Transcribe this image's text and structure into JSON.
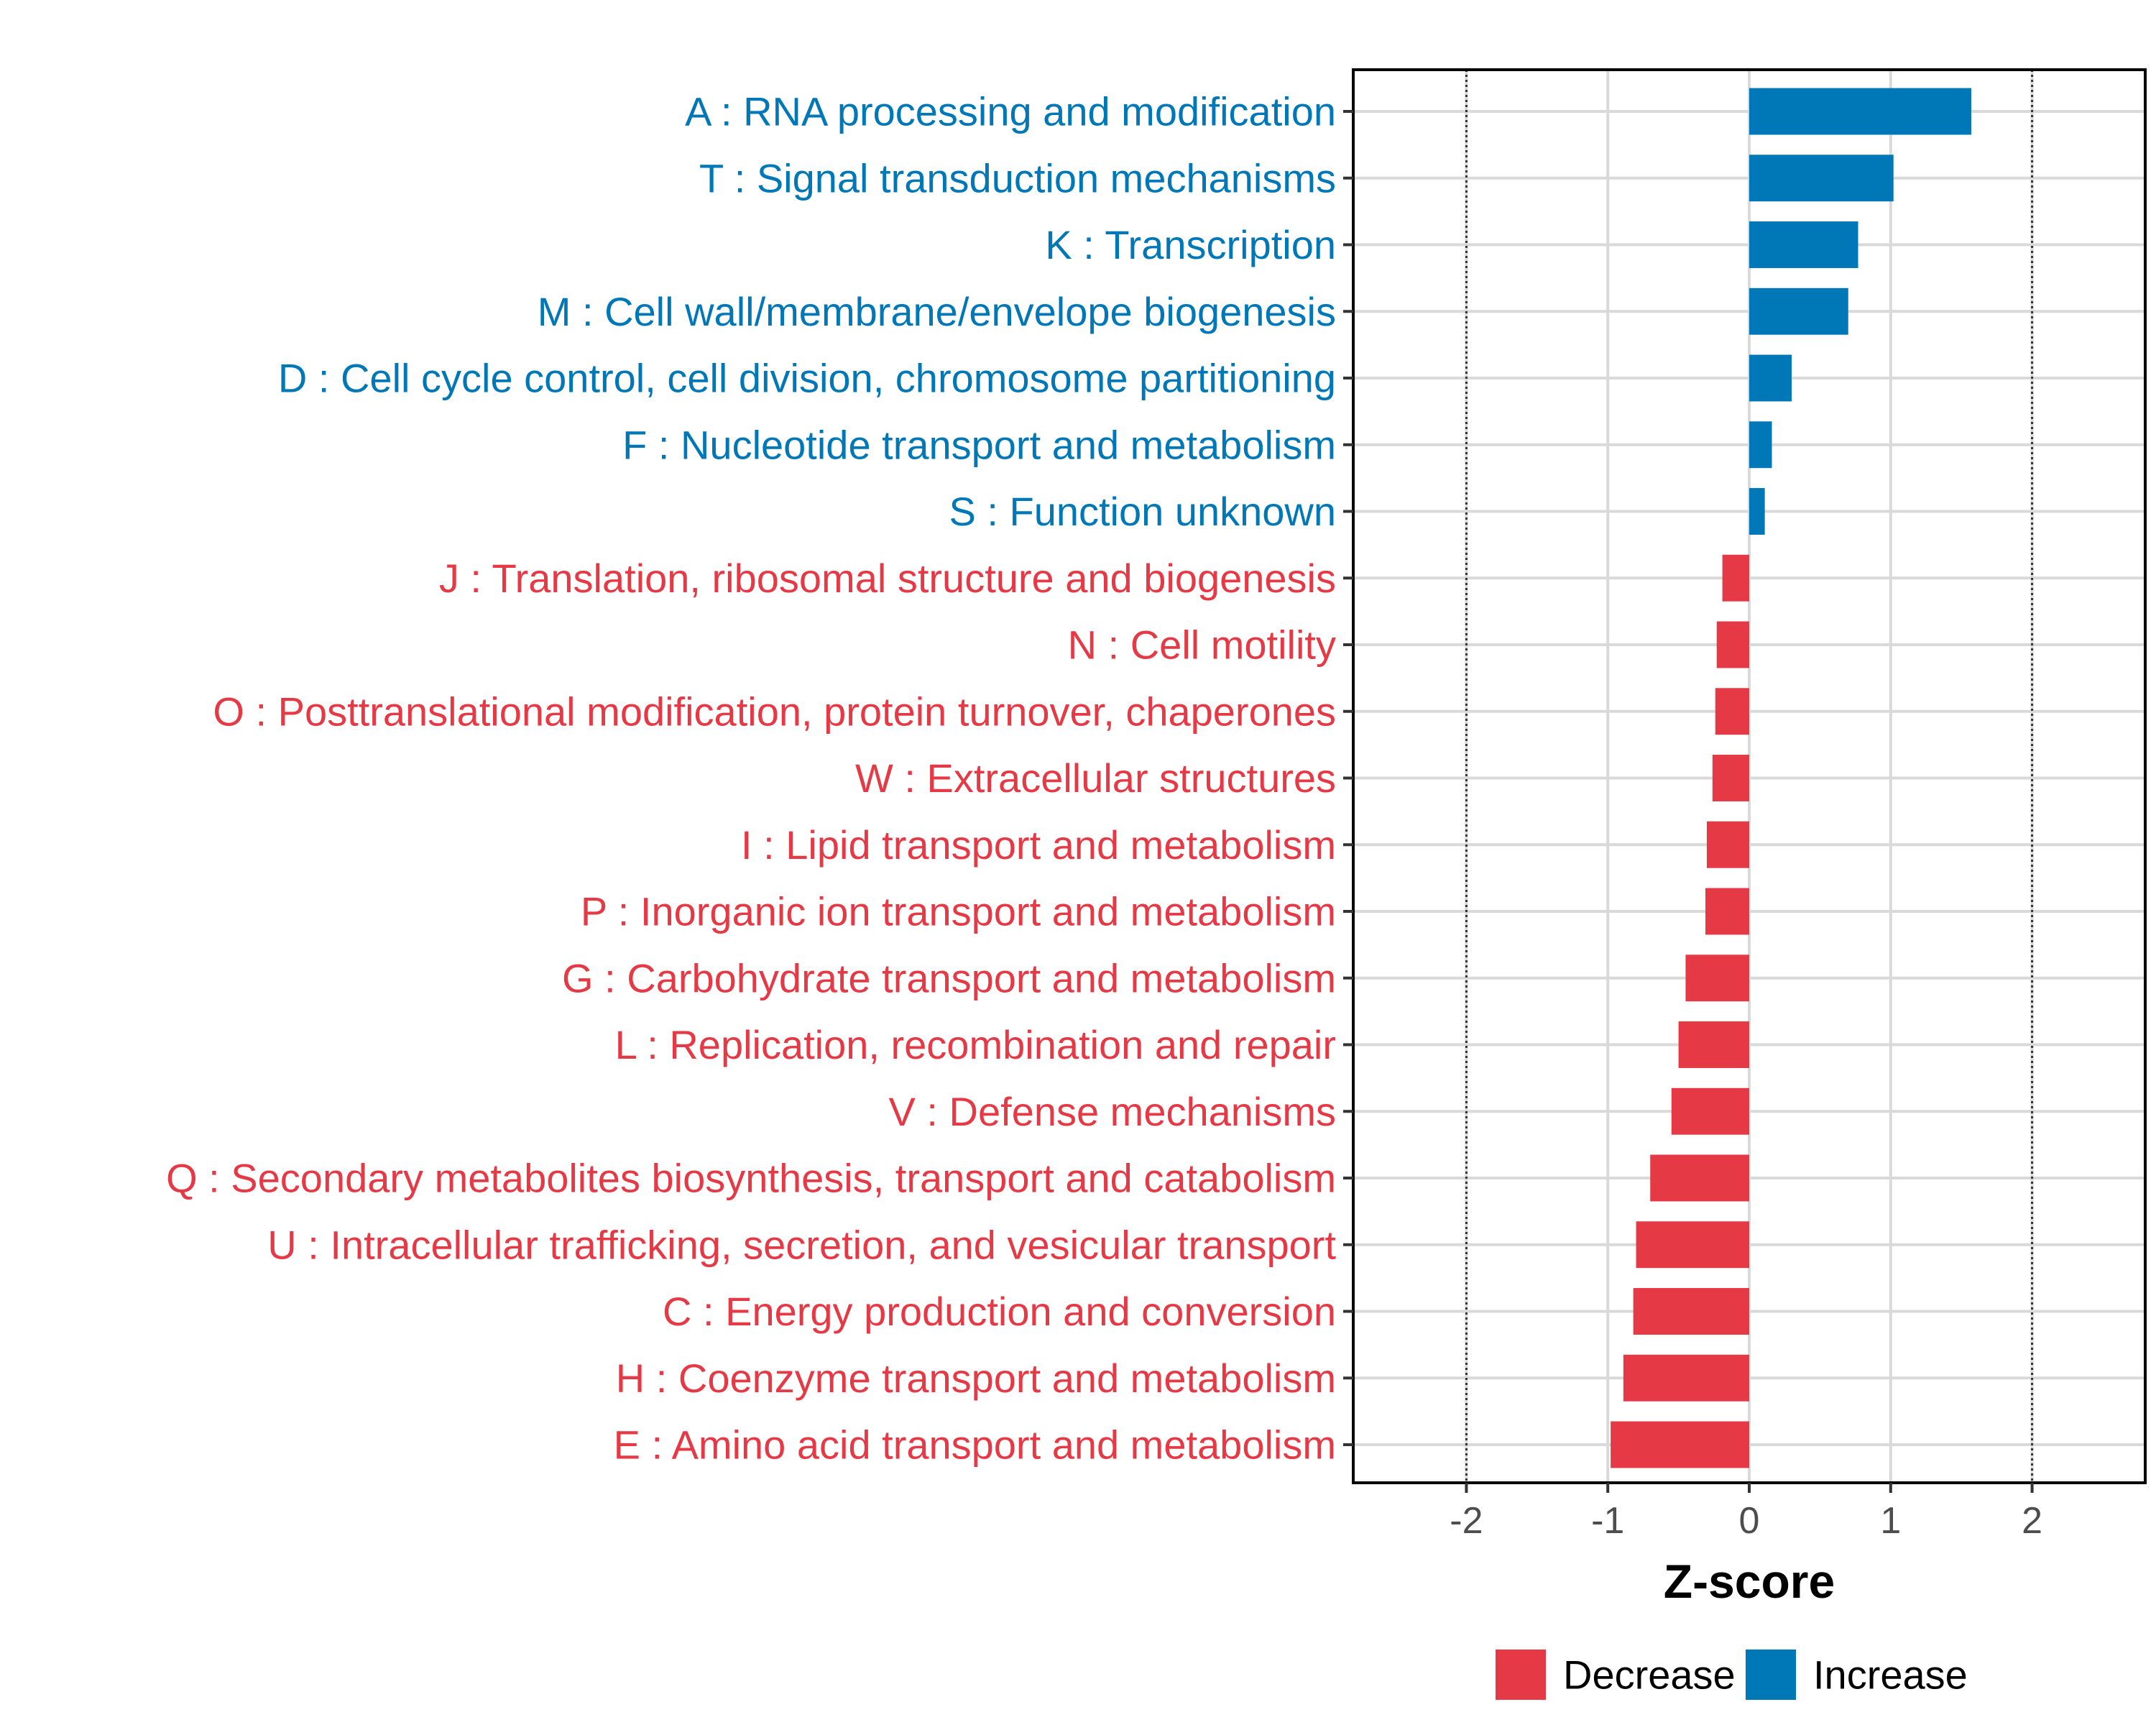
{
  "chart_data": {
    "type": "bar",
    "orientation": "horizontal",
    "xlabel": "Z-score",
    "xlim": [
      -2.8,
      2.8
    ],
    "xticks": [
      -2,
      -1,
      0,
      1,
      2
    ],
    "xtick_labels": [
      "-2",
      "-1",
      "0",
      "1",
      "2"
    ],
    "reference_lines": [
      -2,
      2
    ],
    "grid": true,
    "legend_position": "bottom",
    "colors": {
      "Decrease": "#e63946",
      "Increase": "#0077b6"
    },
    "legend": [
      {
        "label": "Decrease",
        "color": "#e63946"
      },
      {
        "label": "Increase",
        "color": "#0077b6"
      }
    ],
    "categories": [
      "A : RNA processing and modification",
      "T : Signal transduction mechanisms",
      "K : Transcription",
      "M : Cell wall/membrane/envelope biogenesis",
      "D : Cell cycle control, cell division, chromosome partitioning",
      "F : Nucleotide transport and metabolism",
      "S : Function unknown",
      "J : Translation, ribosomal structure and biogenesis",
      "N : Cell motility",
      "O : Posttranslational modification, protein turnover, chaperones",
      "W : Extracellular structures",
      "I : Lipid transport and metabolism",
      "P : Inorganic ion transport and metabolism",
      "G : Carbohydrate transport and metabolism",
      "L : Replication, recombination and repair",
      "V : Defense mechanisms",
      "Q : Secondary metabolites biosynthesis, transport and catabolism",
      "U : Intracellular trafficking, secretion, and vesicular transport",
      "C : Energy production and conversion",
      "H : Coenzyme transport and metabolism",
      "E : Amino acid transport and metabolism"
    ],
    "values": [
      1.57,
      1.02,
      0.77,
      0.7,
      0.3,
      0.16,
      0.11,
      -0.19,
      -0.23,
      -0.24,
      -0.26,
      -0.3,
      -0.31,
      -0.45,
      -0.5,
      -0.55,
      -0.7,
      -0.8,
      -0.82,
      -0.89,
      -0.98
    ],
    "groups": [
      "Increase",
      "Increase",
      "Increase",
      "Increase",
      "Increase",
      "Increase",
      "Increase",
      "Decrease",
      "Decrease",
      "Decrease",
      "Decrease",
      "Decrease",
      "Decrease",
      "Decrease",
      "Decrease",
      "Decrease",
      "Decrease",
      "Decrease",
      "Decrease",
      "Decrease",
      "Decrease"
    ]
  }
}
